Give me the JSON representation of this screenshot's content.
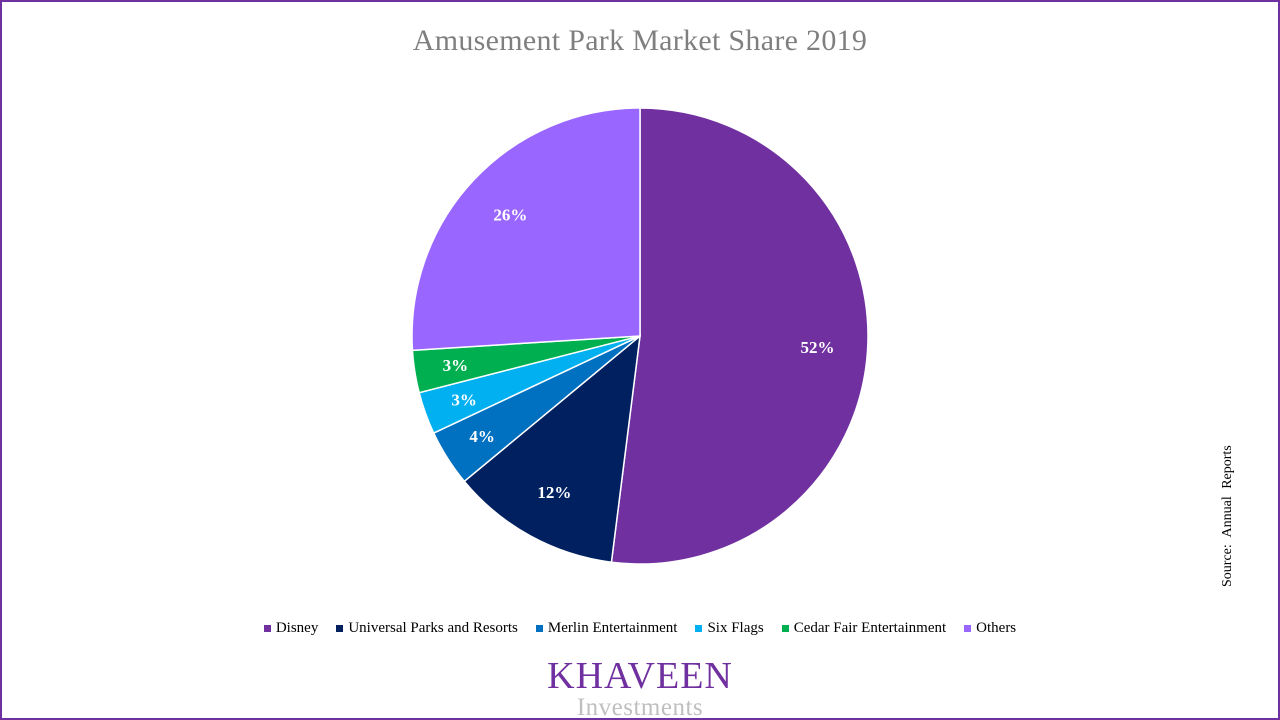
{
  "chart_data": {
    "type": "pie",
    "title": "Amusement Park Market Share 2019",
    "slices": [
      {
        "name": "Disney",
        "value": 52,
        "label": "52%",
        "color": "#7030a0"
      },
      {
        "name": "Universal Parks and Resorts",
        "value": 12,
        "label": "12%",
        "color": "#002060"
      },
      {
        "name": "Merlin Entertainment",
        "value": 4,
        "label": "4%",
        "color": "#0070c0"
      },
      {
        "name": "Six Flags",
        "value": 3,
        "label": "3%",
        "color": "#00b0f0"
      },
      {
        "name": "Cedar Fair Entertainment",
        "value": 3,
        "label": "3%",
        "color": "#00b050"
      },
      {
        "name": "Others",
        "value": 26,
        "label": "26%",
        "color": "#9966ff"
      }
    ],
    "start": "12 o'clock",
    "direction": "clockwise",
    "legend_position": "bottom"
  },
  "source_note": "Source: Annual Reports",
  "brand": {
    "name": "KHAVEEN",
    "sub": "Investments"
  }
}
